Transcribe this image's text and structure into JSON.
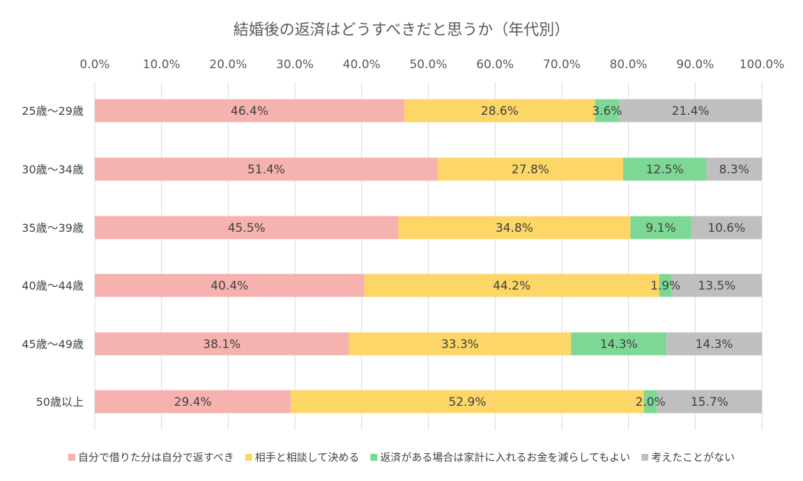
{
  "chart_data": {
    "type": "bar",
    "orientation": "horizontal",
    "stacked": true,
    "title": "結婚後の返済はどうすべきだと思うか（年代別）",
    "categories": [
      "25歳～29歳",
      "30歳～34歳",
      "35歳～39歳",
      "40歳～44歳",
      "45歳～49歳",
      "50歳以上"
    ],
    "series": [
      {
        "name": "自分で借りた分は自分で返すべき",
        "color": "#F6B2AE",
        "values": [
          46.4,
          51.4,
          45.5,
          40.4,
          38.1,
          29.4
        ]
      },
      {
        "name": "相手と相談して決める",
        "color": "#FCD667",
        "values": [
          28.6,
          27.8,
          34.8,
          44.2,
          33.3,
          52.9
        ]
      },
      {
        "name": "返済がある場合は家計に入れるお金を減らしてもよい",
        "color": "#7DD896",
        "values": [
          3.6,
          12.5,
          9.1,
          1.9,
          14.3,
          2.0
        ]
      },
      {
        "name": "考えたことがない",
        "color": "#BFBFBF",
        "values": [
          21.4,
          8.3,
          10.6,
          13.5,
          14.3,
          15.7
        ]
      }
    ],
    "value_format": "percent_1dp",
    "xlim": [
      0,
      100
    ],
    "xticks": [
      0,
      10,
      20,
      30,
      40,
      50,
      60,
      70,
      80,
      90,
      100
    ],
    "xtick_labels": [
      "0.0%",
      "10.0%",
      "20.0%",
      "30.0%",
      "40.0%",
      "50.0%",
      "60.0%",
      "70.0%",
      "80.0%",
      "90.0%",
      "100.0%"
    ],
    "xlabel": "",
    "ylabel": "",
    "grid": true,
    "axis_position": "top",
    "legend_position": "bottom"
  }
}
